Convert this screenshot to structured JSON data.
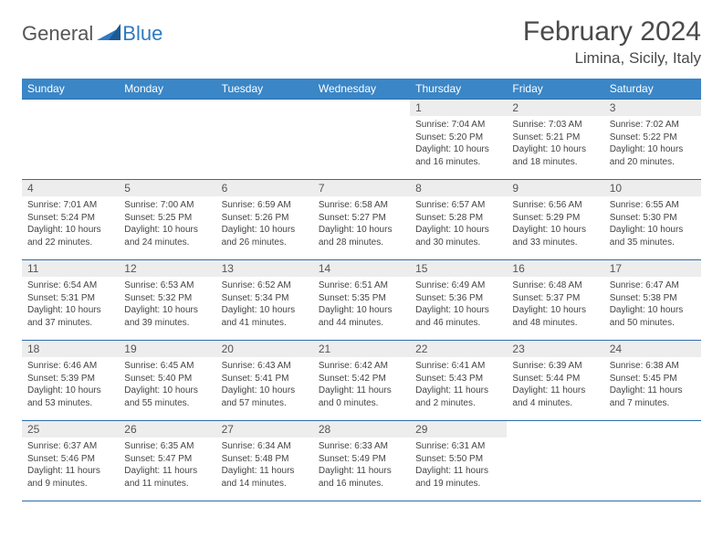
{
  "logo": {
    "general": "General",
    "blue": "Blue"
  },
  "title": "February 2024",
  "location": "Limina, Sicily, Italy",
  "colors": {
    "header_bg": "#3b86c6",
    "header_text": "#ffffff",
    "daynum_bg": "#ededed",
    "border": "#2f6da8"
  },
  "weekdays": [
    "Sunday",
    "Monday",
    "Tuesday",
    "Wednesday",
    "Thursday",
    "Friday",
    "Saturday"
  ],
  "weeks": [
    [
      {
        "n": "",
        "sr": "",
        "ss": "",
        "dl": ""
      },
      {
        "n": "",
        "sr": "",
        "ss": "",
        "dl": ""
      },
      {
        "n": "",
        "sr": "",
        "ss": "",
        "dl": ""
      },
      {
        "n": "",
        "sr": "",
        "ss": "",
        "dl": ""
      },
      {
        "n": "1",
        "sr": "Sunrise: 7:04 AM",
        "ss": "Sunset: 5:20 PM",
        "dl": "Daylight: 10 hours and 16 minutes."
      },
      {
        "n": "2",
        "sr": "Sunrise: 7:03 AM",
        "ss": "Sunset: 5:21 PM",
        "dl": "Daylight: 10 hours and 18 minutes."
      },
      {
        "n": "3",
        "sr": "Sunrise: 7:02 AM",
        "ss": "Sunset: 5:22 PM",
        "dl": "Daylight: 10 hours and 20 minutes."
      }
    ],
    [
      {
        "n": "4",
        "sr": "Sunrise: 7:01 AM",
        "ss": "Sunset: 5:24 PM",
        "dl": "Daylight: 10 hours and 22 minutes."
      },
      {
        "n": "5",
        "sr": "Sunrise: 7:00 AM",
        "ss": "Sunset: 5:25 PM",
        "dl": "Daylight: 10 hours and 24 minutes."
      },
      {
        "n": "6",
        "sr": "Sunrise: 6:59 AM",
        "ss": "Sunset: 5:26 PM",
        "dl": "Daylight: 10 hours and 26 minutes."
      },
      {
        "n": "7",
        "sr": "Sunrise: 6:58 AM",
        "ss": "Sunset: 5:27 PM",
        "dl": "Daylight: 10 hours and 28 minutes."
      },
      {
        "n": "8",
        "sr": "Sunrise: 6:57 AM",
        "ss": "Sunset: 5:28 PM",
        "dl": "Daylight: 10 hours and 30 minutes."
      },
      {
        "n": "9",
        "sr": "Sunrise: 6:56 AM",
        "ss": "Sunset: 5:29 PM",
        "dl": "Daylight: 10 hours and 33 minutes."
      },
      {
        "n": "10",
        "sr": "Sunrise: 6:55 AM",
        "ss": "Sunset: 5:30 PM",
        "dl": "Daylight: 10 hours and 35 minutes."
      }
    ],
    [
      {
        "n": "11",
        "sr": "Sunrise: 6:54 AM",
        "ss": "Sunset: 5:31 PM",
        "dl": "Daylight: 10 hours and 37 minutes."
      },
      {
        "n": "12",
        "sr": "Sunrise: 6:53 AM",
        "ss": "Sunset: 5:32 PM",
        "dl": "Daylight: 10 hours and 39 minutes."
      },
      {
        "n": "13",
        "sr": "Sunrise: 6:52 AM",
        "ss": "Sunset: 5:34 PM",
        "dl": "Daylight: 10 hours and 41 minutes."
      },
      {
        "n": "14",
        "sr": "Sunrise: 6:51 AM",
        "ss": "Sunset: 5:35 PM",
        "dl": "Daylight: 10 hours and 44 minutes."
      },
      {
        "n": "15",
        "sr": "Sunrise: 6:49 AM",
        "ss": "Sunset: 5:36 PM",
        "dl": "Daylight: 10 hours and 46 minutes."
      },
      {
        "n": "16",
        "sr": "Sunrise: 6:48 AM",
        "ss": "Sunset: 5:37 PM",
        "dl": "Daylight: 10 hours and 48 minutes."
      },
      {
        "n": "17",
        "sr": "Sunrise: 6:47 AM",
        "ss": "Sunset: 5:38 PM",
        "dl": "Daylight: 10 hours and 50 minutes."
      }
    ],
    [
      {
        "n": "18",
        "sr": "Sunrise: 6:46 AM",
        "ss": "Sunset: 5:39 PM",
        "dl": "Daylight: 10 hours and 53 minutes."
      },
      {
        "n": "19",
        "sr": "Sunrise: 6:45 AM",
        "ss": "Sunset: 5:40 PM",
        "dl": "Daylight: 10 hours and 55 minutes."
      },
      {
        "n": "20",
        "sr": "Sunrise: 6:43 AM",
        "ss": "Sunset: 5:41 PM",
        "dl": "Daylight: 10 hours and 57 minutes."
      },
      {
        "n": "21",
        "sr": "Sunrise: 6:42 AM",
        "ss": "Sunset: 5:42 PM",
        "dl": "Daylight: 11 hours and 0 minutes."
      },
      {
        "n": "22",
        "sr": "Sunrise: 6:41 AM",
        "ss": "Sunset: 5:43 PM",
        "dl": "Daylight: 11 hours and 2 minutes."
      },
      {
        "n": "23",
        "sr": "Sunrise: 6:39 AM",
        "ss": "Sunset: 5:44 PM",
        "dl": "Daylight: 11 hours and 4 minutes."
      },
      {
        "n": "24",
        "sr": "Sunrise: 6:38 AM",
        "ss": "Sunset: 5:45 PM",
        "dl": "Daylight: 11 hours and 7 minutes."
      }
    ],
    [
      {
        "n": "25",
        "sr": "Sunrise: 6:37 AM",
        "ss": "Sunset: 5:46 PM",
        "dl": "Daylight: 11 hours and 9 minutes."
      },
      {
        "n": "26",
        "sr": "Sunrise: 6:35 AM",
        "ss": "Sunset: 5:47 PM",
        "dl": "Daylight: 11 hours and 11 minutes."
      },
      {
        "n": "27",
        "sr": "Sunrise: 6:34 AM",
        "ss": "Sunset: 5:48 PM",
        "dl": "Daylight: 11 hours and 14 minutes."
      },
      {
        "n": "28",
        "sr": "Sunrise: 6:33 AM",
        "ss": "Sunset: 5:49 PM",
        "dl": "Daylight: 11 hours and 16 minutes."
      },
      {
        "n": "29",
        "sr": "Sunrise: 6:31 AM",
        "ss": "Sunset: 5:50 PM",
        "dl": "Daylight: 11 hours and 19 minutes."
      },
      {
        "n": "",
        "sr": "",
        "ss": "",
        "dl": ""
      },
      {
        "n": "",
        "sr": "",
        "ss": "",
        "dl": ""
      }
    ]
  ]
}
